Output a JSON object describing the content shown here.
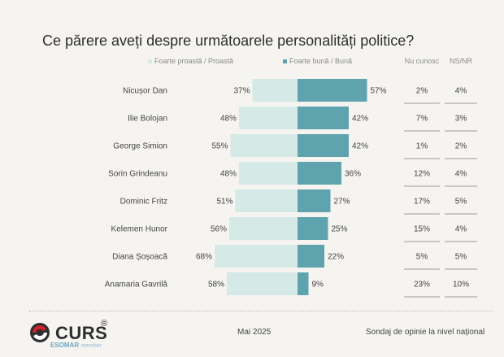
{
  "title": "Ce părere aveți despre următoarele personalități politice?",
  "legend": {
    "negative_label": "Foarte proastă / Proastă",
    "positive_label": "Foarte bună / Bună",
    "unknown_label": "Nu cunosc",
    "nsnr_label": "NS/NR"
  },
  "colors": {
    "negative": "#d5e9e7",
    "positive": "#5ea3ae",
    "background": "#f5f4f1"
  },
  "chart_data": {
    "type": "bar",
    "subtype": "diverging-horizontal",
    "categories": [
      "Nicușor Dan",
      "Ilie Bolojan",
      "George Simion",
      "Sorin Grindeanu",
      "Dominic Fritz",
      "Kelemen Hunor",
      "Diana Șoșoacă",
      "Anamaria Gavrilă"
    ],
    "series": [
      {
        "name": "Foarte proastă / Proastă",
        "values": [
          37,
          48,
          55,
          48,
          51,
          56,
          68,
          58
        ]
      },
      {
        "name": "Foarte bună / Bună",
        "values": [
          57,
          42,
          42,
          36,
          27,
          25,
          22,
          9
        ]
      }
    ],
    "columns": [
      {
        "name": "Nu cunosc",
        "values": [
          "2%",
          "7%",
          "1%",
          "12%",
          "17%",
          "15%",
          "5%",
          "23%"
        ]
      },
      {
        "name": "NS/NR",
        "values": [
          "4%",
          "3%",
          "2%",
          "4%",
          "5%",
          "4%",
          "5%",
          "10%"
        ]
      }
    ],
    "unit": "%"
  },
  "footer": {
    "logo_text": "CURS",
    "logo_reg": "®",
    "logo_sub": "ESOMAR",
    "logo_member": "member",
    "date": "Mai 2025",
    "source": "Sondaj de opinie la nivel național"
  }
}
